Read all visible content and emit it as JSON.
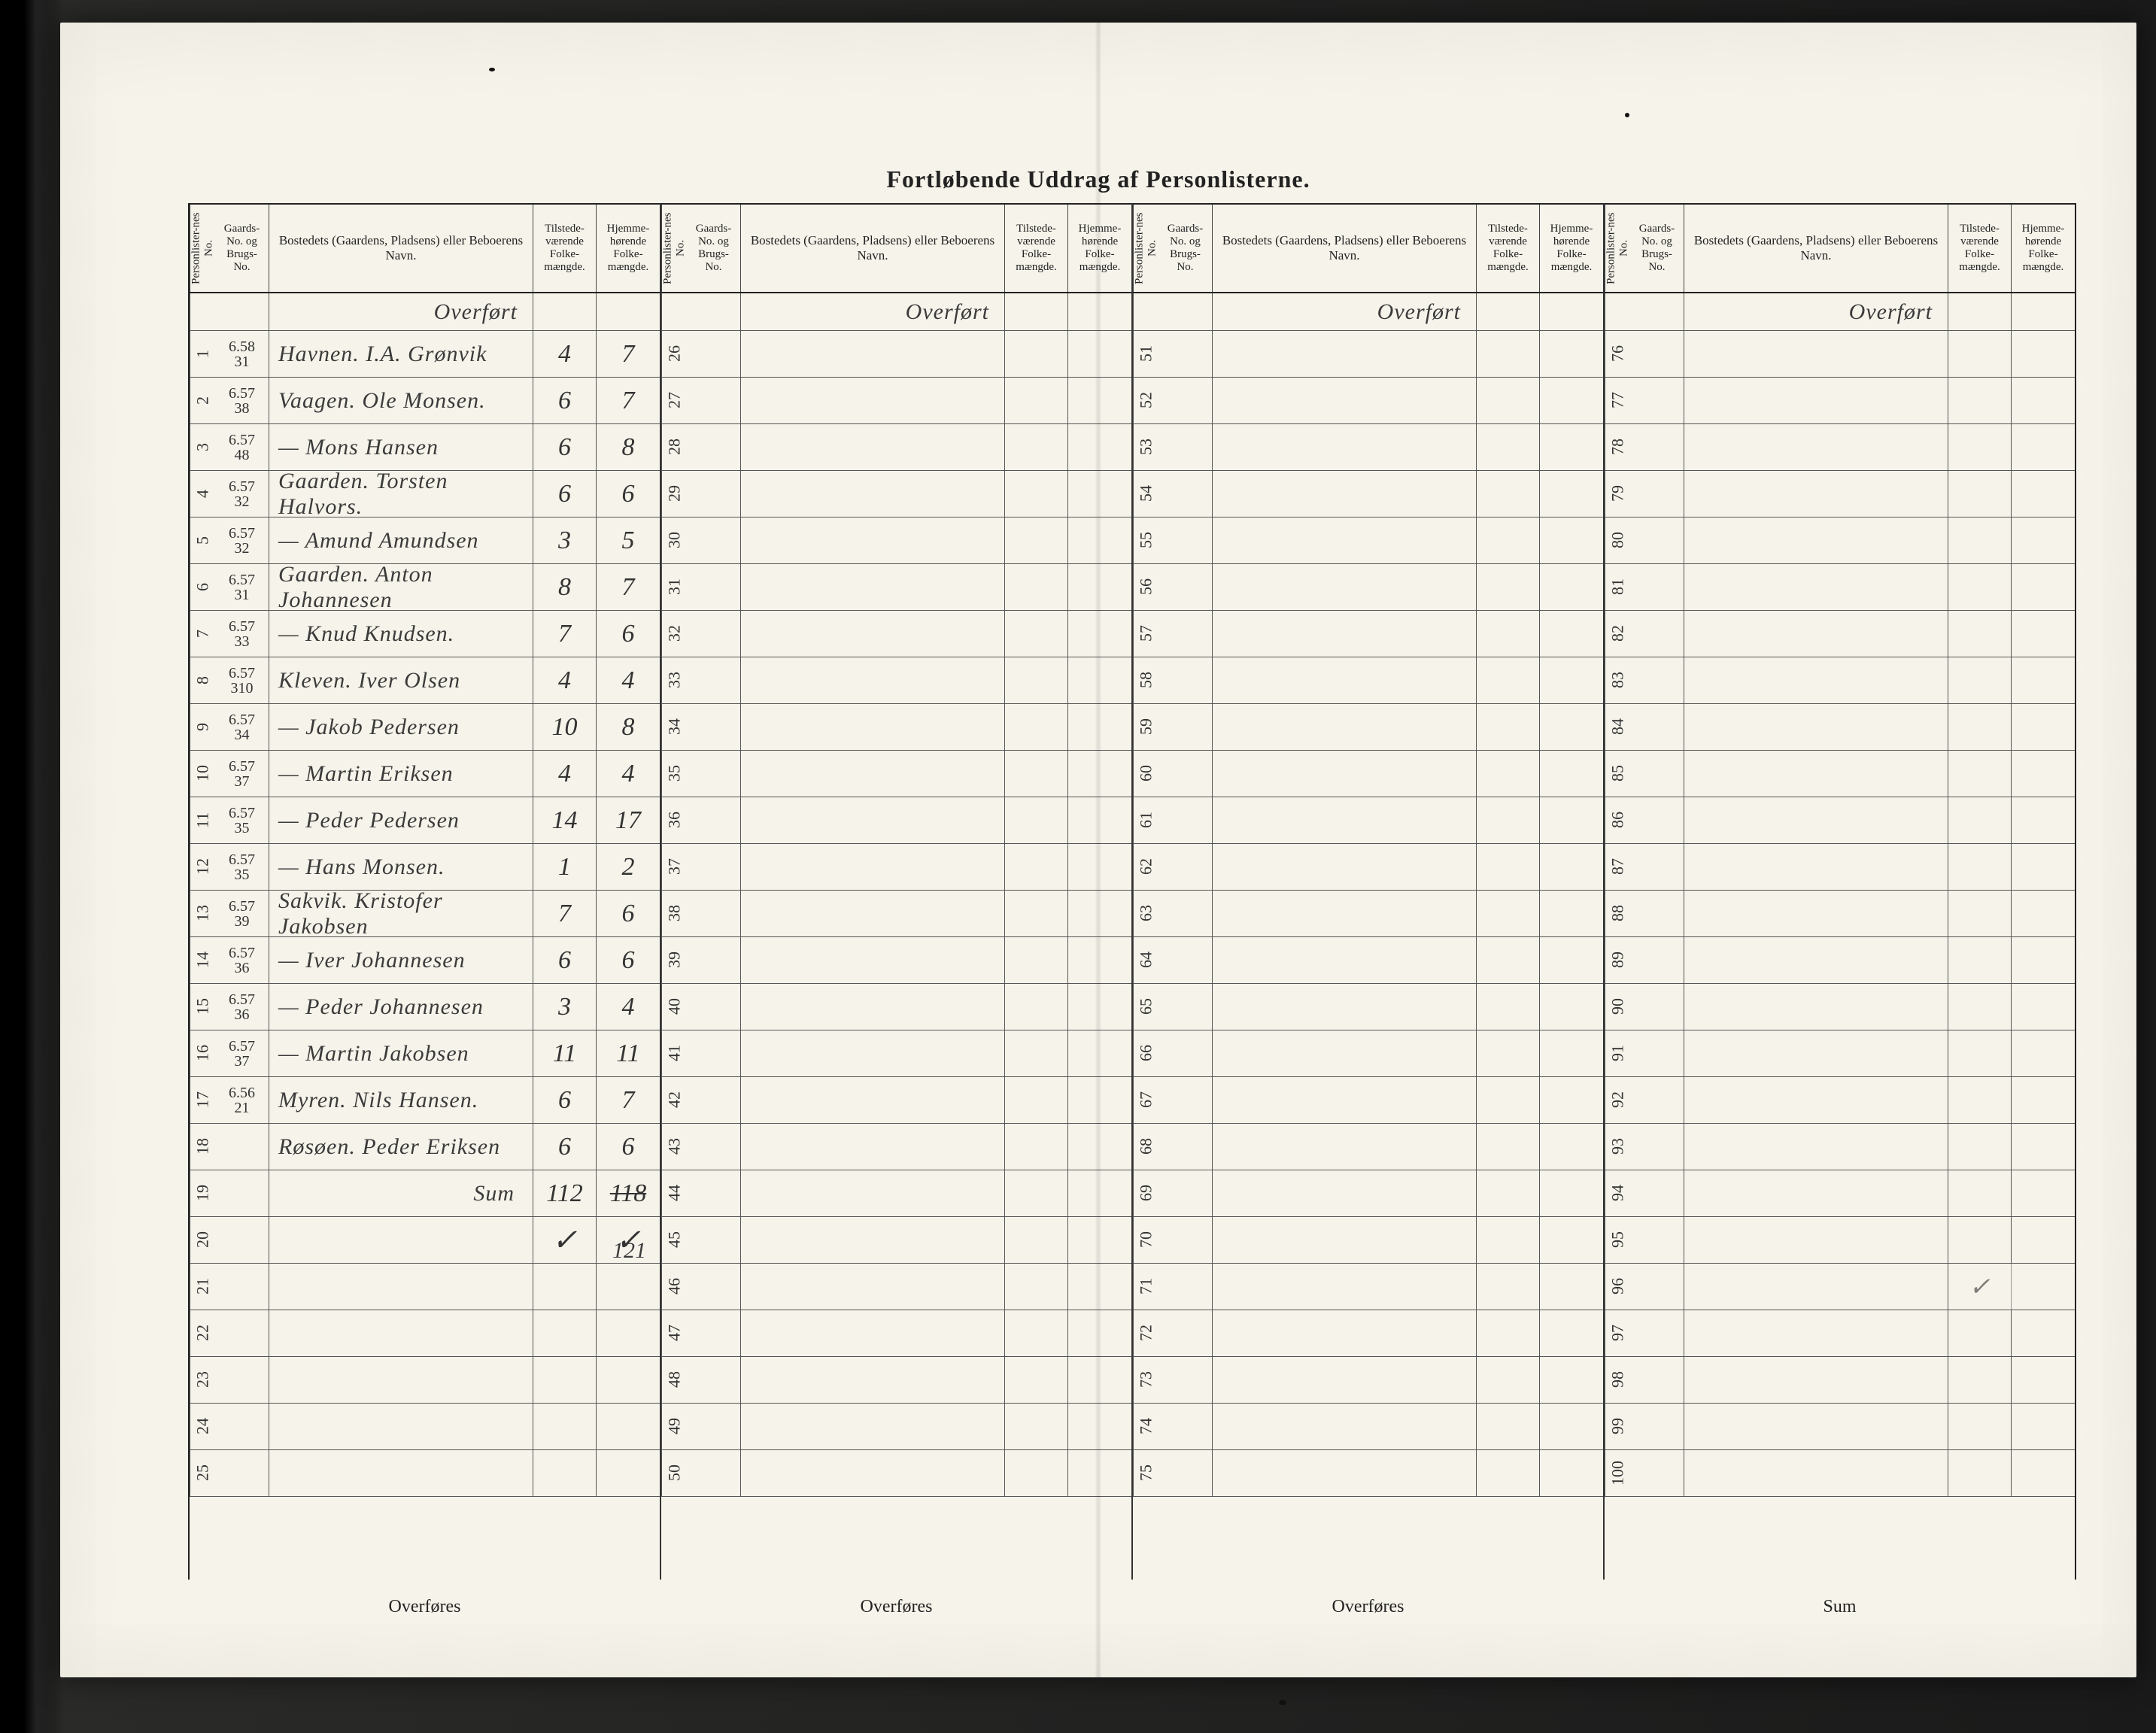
{
  "document": {
    "title": "Fortløbende Uddrag   af Personlisterne.",
    "overfort_label": "Overført",
    "overfores_label": "Overføres",
    "sum_label": "Sum",
    "colors": {
      "paper": "#f6f3ea",
      "ink": "#222222",
      "rule": "#555555",
      "handwriting": "#3b3b3b",
      "background": "#1a1a1a"
    },
    "column_headers": {
      "personlister_no": "Personlister-nes No.",
      "gaards_no": "Gaards-No. og Brugs-No.",
      "bosted": "Bostedets (Gaardens, Pladsens) eller Beboerens Navn.",
      "tilstede": "Tilstede-værende Folke-mængde.",
      "hjemme": "Hjemme-hørende Folke-mængde."
    },
    "blocks": [
      {
        "start": 1,
        "end": 25,
        "footer": "Overføres"
      },
      {
        "start": 26,
        "end": 50,
        "footer": "Overføres"
      },
      {
        "start": 51,
        "end": 75,
        "footer": "Overføres"
      },
      {
        "start": 76,
        "end": 100,
        "footer": "Sum"
      }
    ],
    "entries": [
      {
        "no": 1,
        "gno": "6.58 31",
        "name": "Havnen. I.A. Grønvik",
        "til": "4",
        "hje": "7"
      },
      {
        "no": 2,
        "gno": "6.57 38",
        "name": "Vaagen. Ole Monsen.",
        "til": "6",
        "hje": "7"
      },
      {
        "no": 3,
        "gno": "6.57 48",
        "name": "— Mons Hansen",
        "til": "6",
        "hje": "8"
      },
      {
        "no": 4,
        "gno": "6.57 32",
        "name": "Gaarden. Torsten Halvors.",
        "til": "6",
        "hje": "6"
      },
      {
        "no": 5,
        "gno": "6.57 32",
        "name": "— Amund Amundsen",
        "til": "3",
        "hje": "5"
      },
      {
        "no": 6,
        "gno": "6.57 31",
        "name": "Gaarden. Anton Johannesen",
        "til": "8",
        "hje": "7"
      },
      {
        "no": 7,
        "gno": "6.57 33",
        "name": "— Knud Knudsen.",
        "til": "7",
        "hje": "6"
      },
      {
        "no": 8,
        "gno": "6.57 310",
        "name": "Kleven. Iver Olsen",
        "til": "4",
        "hje": "4"
      },
      {
        "no": 9,
        "gno": "6.57 34",
        "name": "— Jakob Pedersen",
        "til": "10",
        "hje": "8"
      },
      {
        "no": 10,
        "gno": "6.57 37",
        "name": "— Martin Eriksen",
        "til": "4",
        "hje": "4"
      },
      {
        "no": 11,
        "gno": "6.57 35",
        "name": "— Peder Pedersen",
        "til": "14",
        "hje": "17"
      },
      {
        "no": 12,
        "gno": "6.57 35",
        "name": "— Hans Monsen.",
        "til": "1",
        "hje": "2"
      },
      {
        "no": 13,
        "gno": "6.57 39",
        "name": "Sakvik. Kristofer Jakobsen",
        "til": "7",
        "hje": "6"
      },
      {
        "no": 14,
        "gno": "6.57 36",
        "name": "— Iver Johannesen",
        "til": "6",
        "hje": "6"
      },
      {
        "no": 15,
        "gno": "6.57 36",
        "name": "— Peder Johannesen",
        "til": "3",
        "hje": "4"
      },
      {
        "no": 16,
        "gno": "6.57 37",
        "name": "— Martin Jakobsen",
        "til": "11",
        "hje": "11"
      },
      {
        "no": 17,
        "gno": "6.56 21",
        "name": "Myren. Nils Hansen.",
        "til": "6",
        "hje": "7"
      },
      {
        "no": 18,
        "gno": "",
        "name": "Røsøen. Peder Eriksen",
        "til": "6",
        "hje": "6"
      }
    ],
    "sum_row": {
      "at_no": 19,
      "label": "Sum",
      "til": "112",
      "hje_struck": "118",
      "hje_corrected": "121"
    },
    "checkmarks": {
      "row": 20
    }
  }
}
